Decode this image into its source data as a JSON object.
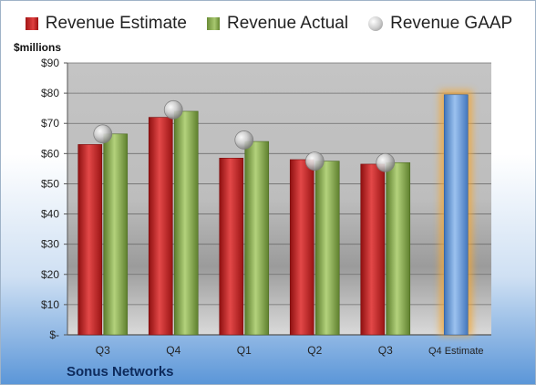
{
  "legend": {
    "estimate_label": "Revenue Estimate",
    "actual_label": "Revenue Actual",
    "gaap_label": "Revenue GAAP"
  },
  "unit_label": "$millions",
  "footer": {
    "company": "Sonus Networks"
  },
  "colors": {
    "estimate": "#c92a2a",
    "actual": "#8db35a",
    "gaap_marker": "#b5b5b5",
    "future_estimate": "#6e9fd9",
    "future_glow": "#f5a733"
  },
  "chart_data": {
    "type": "bar",
    "categories": [
      "Q3",
      "Q4",
      "Q1",
      "Q2",
      "Q3",
      "Q4 Estimate"
    ],
    "series": [
      {
        "name": "Revenue Estimate",
        "values": [
          63,
          72,
          58.5,
          58,
          56.5,
          79.5
        ]
      },
      {
        "name": "Revenue Actual",
        "values": [
          66.5,
          74,
          64,
          57.5,
          57,
          null
        ]
      },
      {
        "name": "Revenue GAAP",
        "values": [
          66.5,
          74.5,
          64.5,
          57.5,
          57,
          null
        ]
      }
    ],
    "yticks": [
      "$-",
      "$10",
      "$20",
      "$30",
      "$40",
      "$50",
      "$60",
      "$70",
      "$80",
      "$90"
    ],
    "ylim": [
      0,
      90
    ],
    "ylabel": "$millions",
    "grid": true,
    "legend": "top"
  }
}
